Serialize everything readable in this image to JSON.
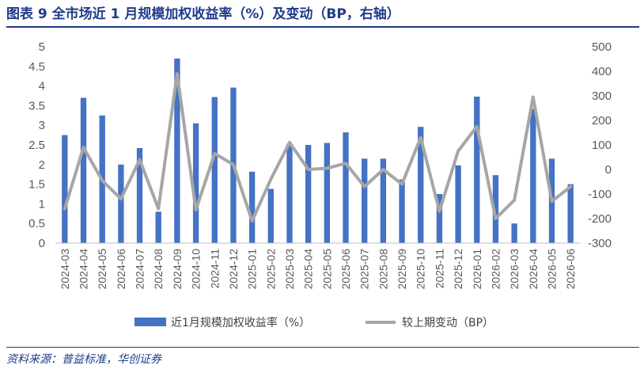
{
  "figure": {
    "title": "图表 9   全市场近 1 月规模加权收益率（%）及变动（BP，右轴）",
    "source": "资料来源：普益标准，华创证券"
  },
  "colors": {
    "bar": "#4472c4",
    "line": "#a6a6a6",
    "title": "#1f3b8a",
    "axis_text": "#595959"
  },
  "chart_data": {
    "type": "bar",
    "categories": [
      "2024-03",
      "2024-04",
      "2024-05",
      "2024-06",
      "2024-07",
      "2024-08",
      "2024-09",
      "2024-10",
      "2024-11",
      "2024-12",
      "2025-01",
      "2025-02",
      "2025-03",
      "2025-04",
      "2025-05",
      "2025-06",
      "2025-07",
      "2025-08",
      "2025-09",
      "2025-10",
      "2025-11",
      "2025-12",
      "2026-01",
      "2026-02",
      "2026-03",
      "2026-04",
      "2026-05",
      "2026-06"
    ],
    "series": [
      {
        "name": "近1月规模加权收益率（%）",
        "type": "bar",
        "axis": "left",
        "values": [
          2.75,
          3.7,
          3.25,
          2.0,
          2.42,
          0.8,
          4.7,
          3.05,
          3.72,
          3.96,
          1.82,
          1.38,
          2.53,
          2.5,
          2.55,
          2.82,
          2.15,
          2.15,
          1.62,
          2.96,
          1.25,
          1.98,
          3.73,
          1.73,
          0.5,
          3.42,
          2.15,
          1.5
        ]
      },
      {
        "name": "较上期变动（BP）",
        "type": "line",
        "axis": "right",
        "values": [
          -160,
          90,
          -45,
          -120,
          40,
          -160,
          390,
          -165,
          65,
          20,
          -210,
          -40,
          110,
          0,
          5,
          25,
          -70,
          0,
          -60,
          130,
          -170,
          75,
          175,
          -200,
          -125,
          295,
          -130,
          -70
        ]
      }
    ],
    "y_left": {
      "min": 0,
      "max": 5,
      "step": 0.5,
      "ticks": [
        "0",
        "0.5",
        "1",
        "1.5",
        "2",
        "2.5",
        "3",
        "3.5",
        "4",
        "4.5",
        "5"
      ]
    },
    "y_right": {
      "min": -300,
      "max": 500,
      "step": 100,
      "ticks": [
        "-300",
        "-200",
        "-100",
        "0",
        "100",
        "200",
        "300",
        "400",
        "500"
      ]
    },
    "grid": false,
    "legend": "bottom"
  }
}
